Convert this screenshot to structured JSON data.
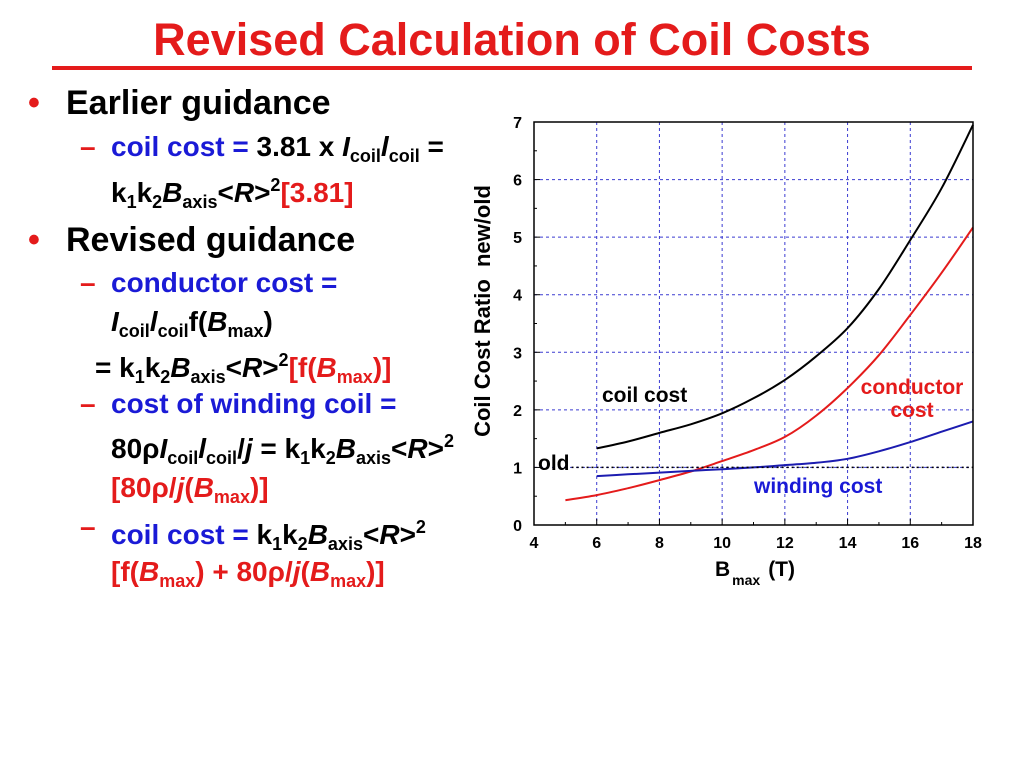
{
  "slide": {
    "title": "Revised Calculation of Coil Costs",
    "bullet_glyph": "•",
    "dash_glyph": "–",
    "colors": {
      "title_red": "#e41b1b",
      "label_blue": "#1a1ad6",
      "text": "#000000"
    }
  },
  "earlier_guidance": {
    "heading": "Earlier guidance",
    "line1": [
      "coil cost =",
      " 3.81 x ",
      "I",
      "coil",
      "l",
      "coil",
      " ="
    ],
    "line2": [
      "k",
      "1",
      "k",
      "2",
      "B",
      "axis",
      "<",
      "R",
      ">",
      "2",
      "[3.81]"
    ]
  },
  "revised_guidance": {
    "heading": "Revised guidance",
    "conductor_cost": {
      "label": "conductor cost =",
      "line1": [
        "I",
        "coil",
        "l",
        "coil",
        "f(",
        "B",
        "max",
        ")"
      ],
      "line2": [
        "= k",
        "1",
        "k",
        "2",
        "B",
        "axis",
        "<",
        "R",
        ">",
        "2",
        "[f(",
        "B",
        "max",
        ")]"
      ]
    },
    "winding_cost": {
      "label": "cost of winding coil =",
      "line1": [
        "80ρ",
        "I",
        "coil",
        "l",
        "coil",
        "/",
        "j",
        " = k",
        "1",
        "k",
        "2",
        "B",
        "axis",
        "<",
        "R",
        ">",
        "2"
      ],
      "line2": [
        "[80ρ/",
        "j",
        "(",
        "B",
        "max",
        ")]"
      ]
    },
    "coil_cost": {
      "line1": [
        "coil cost = ",
        "k",
        "1",
        "k",
        "2",
        "B",
        "axis",
        "<",
        "R",
        ">",
        "2"
      ],
      "line2": [
        "[f(",
        "B",
        "max",
        ") + 80ρ/",
        "j",
        "(",
        "B",
        "max",
        ")]"
      ]
    }
  },
  "chart_data": {
    "type": "line",
    "xlabel": {
      "symbol": "B",
      "subscript": "max",
      "unit": "(T)"
    },
    "ylabel": "Coil Cost Ratio  new/old",
    "xlim": [
      4,
      18
    ],
    "ylim": [
      0,
      7
    ],
    "xticks": [
      4,
      6,
      8,
      10,
      12,
      14,
      16,
      18
    ],
    "yticks": [
      0,
      1,
      2,
      3,
      4,
      5,
      6,
      7
    ],
    "grid": true,
    "grid_color": "#3b3bd1",
    "series": [
      {
        "name": "coil cost",
        "color": "#000000",
        "line_style": "solid",
        "x": [
          6,
          7,
          8,
          9,
          10,
          11,
          12,
          13,
          14,
          15,
          16,
          17,
          18
        ],
        "y": [
          1.33,
          1.45,
          1.6,
          1.75,
          1.94,
          2.2,
          2.52,
          2.93,
          3.42,
          4.1,
          4.95,
          5.85,
          6.95
        ]
      },
      {
        "name": "conductor cost",
        "color": "#e41b1b",
        "line_style": "solid",
        "x": [
          5,
          6,
          7,
          8,
          9,
          10,
          11,
          12,
          13,
          14,
          15,
          16,
          17,
          18
        ],
        "y": [
          0.43,
          0.52,
          0.64,
          0.78,
          0.93,
          1.11,
          1.3,
          1.53,
          1.9,
          2.38,
          2.95,
          3.65,
          4.38,
          5.17
        ]
      },
      {
        "name": "winding cost",
        "color": "#1c1cb0",
        "line_style": "solid",
        "x": [
          6,
          7,
          8,
          9,
          10,
          11,
          12,
          13,
          14,
          15,
          16,
          17,
          18
        ],
        "y": [
          0.85,
          0.88,
          0.91,
          0.94,
          0.97,
          1.0,
          1.04,
          1.08,
          1.15,
          1.28,
          1.44,
          1.62,
          1.8
        ]
      },
      {
        "name": "old",
        "color": "#000000",
        "line_style": "dotted",
        "x": [
          5.2,
          18
        ],
        "y": [
          1,
          1
        ]
      }
    ]
  }
}
